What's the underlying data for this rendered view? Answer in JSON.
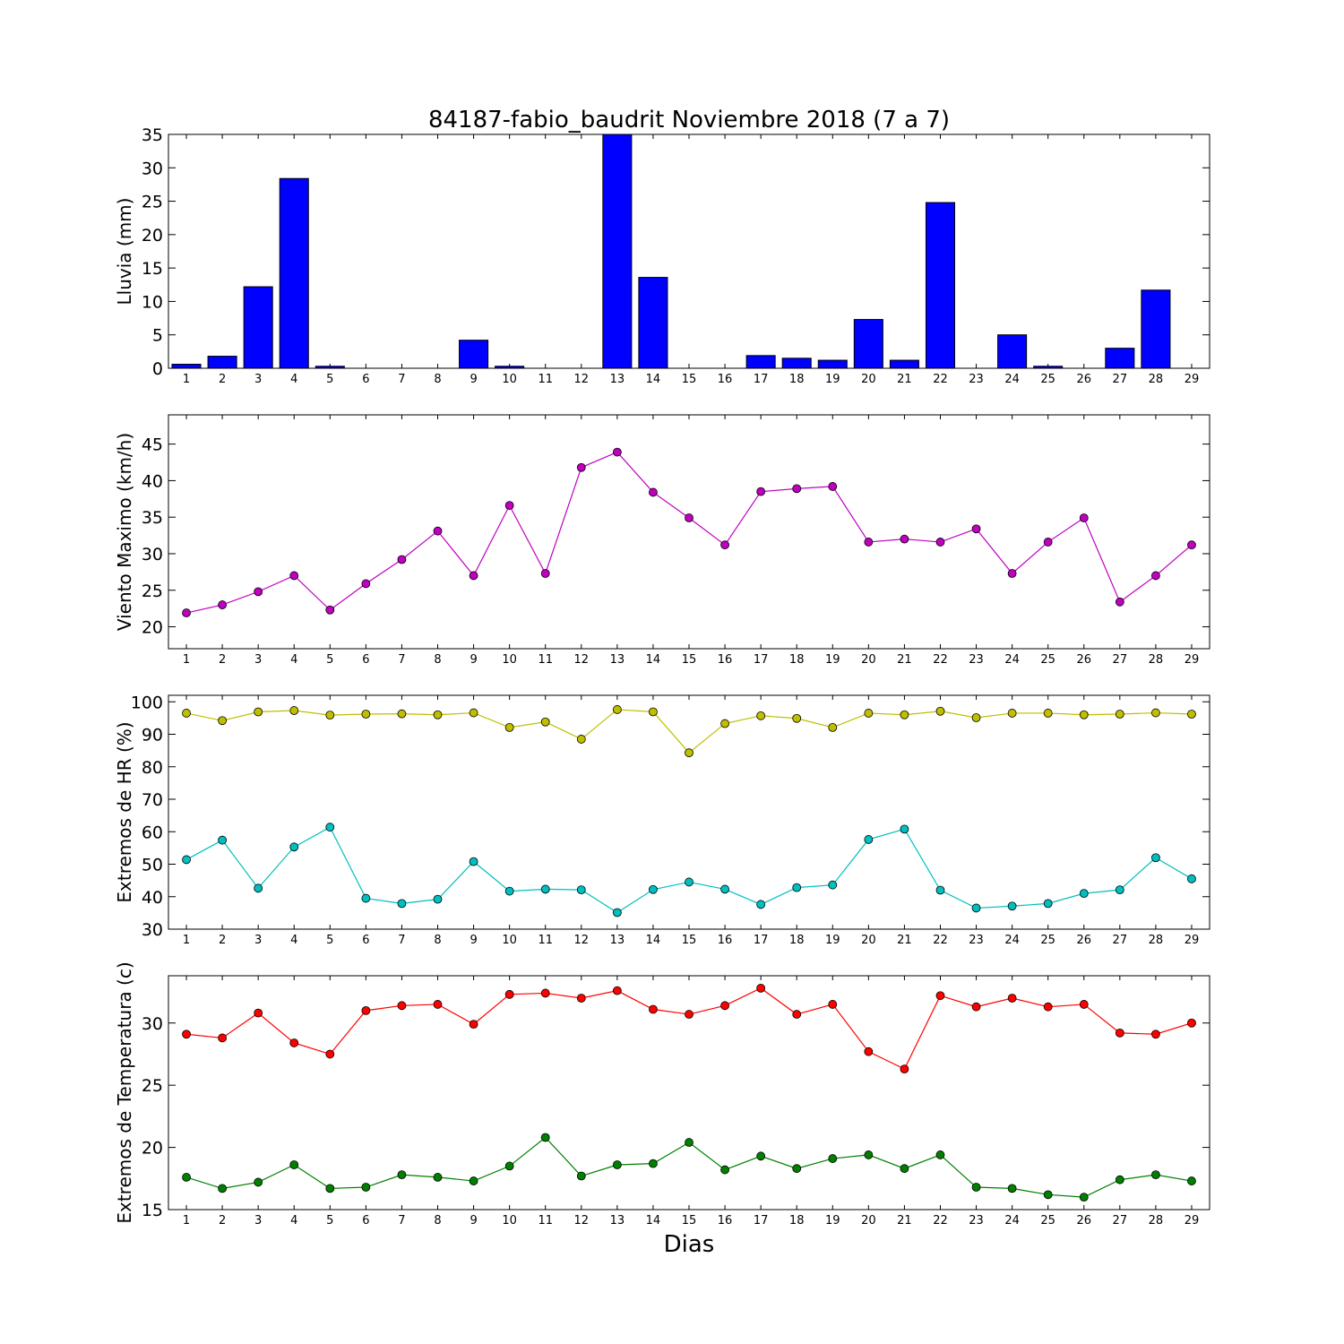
{
  "chart_data": [
    {
      "type": "bar",
      "title": "84187-fabio_baudrit Noviembre 2018  (7 a 7)",
      "ylabel": "Lluvia (mm)",
      "xlabel": "",
      "categories": [
        1,
        2,
        3,
        4,
        5,
        6,
        7,
        8,
        9,
        10,
        11,
        12,
        13,
        14,
        15,
        16,
        17,
        18,
        19,
        20,
        21,
        22,
        23,
        24,
        25,
        26,
        27,
        28,
        29
      ],
      "values": [
        0.6,
        1.8,
        12.2,
        28.4,
        0.3,
        0,
        0,
        0,
        4.2,
        0.3,
        0,
        0,
        35,
        13.6,
        0,
        0,
        1.9,
        1.5,
        1.2,
        7.3,
        1.2,
        24.8,
        0,
        5.0,
        0.3,
        0,
        3.0,
        11.7,
        0
      ],
      "ylim": [
        0,
        35
      ],
      "yticks": [
        0,
        5,
        10,
        15,
        20,
        25,
        30,
        35
      ],
      "color": "#0000ff"
    },
    {
      "type": "line",
      "ylabel": "Viento Maximo (km/h)",
      "x": [
        1,
        2,
        3,
        4,
        5,
        6,
        7,
        8,
        9,
        10,
        11,
        12,
        13,
        14,
        15,
        16,
        17,
        18,
        19,
        20,
        21,
        22,
        23,
        24,
        25,
        26,
        27,
        28,
        29
      ],
      "series": [
        {
          "values": [
            21.9,
            23.0,
            24.8,
            27.0,
            22.3,
            25.9,
            29.2,
            33.1,
            27.0,
            36.6,
            27.3,
            41.8,
            43.9,
            38.4,
            34.9,
            31.2,
            38.5,
            38.9,
            39.2,
            31.6,
            32.0,
            31.6,
            33.4,
            27.3,
            31.6,
            34.9,
            23.4,
            27.0,
            31.2
          ],
          "color": "#bf00bf"
        }
      ],
      "ylim": [
        17,
        49
      ],
      "yticks": [
        20,
        25,
        30,
        35,
        40,
        45
      ]
    },
    {
      "type": "line",
      "ylabel": "Extremos de HR (%)",
      "x": [
        1,
        2,
        3,
        4,
        5,
        6,
        7,
        8,
        9,
        10,
        11,
        12,
        13,
        14,
        15,
        16,
        17,
        18,
        19,
        20,
        21,
        22,
        23,
        24,
        25,
        26,
        27,
        28,
        29
      ],
      "series": [
        {
          "values": [
            96.5,
            94.2,
            96.9,
            97.3,
            95.9,
            96.2,
            96.3,
            96.0,
            96.6,
            92.1,
            93.8,
            88.5,
            97.6,
            96.9,
            84.3,
            93.3,
            95.7,
            94.9,
            92.1,
            96.5,
            96.0,
            97.1,
            95.1,
            96.5,
            96.5,
            96.0,
            96.2,
            96.6,
            96.2
          ],
          "color": "#bfbf00"
        },
        {
          "values": [
            51.4,
            57.4,
            42.6,
            55.3,
            61.4,
            39.5,
            37.9,
            39.2,
            50.8,
            41.7,
            42.3,
            42.1,
            35.1,
            42.2,
            44.5,
            42.3,
            37.6,
            42.8,
            43.6,
            57.6,
            60.8,
            42.0,
            36.5,
            37.1,
            37.9,
            41.0,
            42.1,
            52.0,
            45.5
          ],
          "color": "#00bfbf"
        }
      ],
      "ylim": [
        30,
        102
      ],
      "yticks": [
        30,
        40,
        50,
        60,
        70,
        80,
        90,
        100
      ]
    },
    {
      "type": "line",
      "ylabel": "Extremos de Temperatura (c)",
      "xlabel": "Dias",
      "x": [
        1,
        2,
        3,
        4,
        5,
        6,
        7,
        8,
        9,
        10,
        11,
        12,
        13,
        14,
        15,
        16,
        17,
        18,
        19,
        20,
        21,
        22,
        23,
        24,
        25,
        26,
        27,
        28,
        29
      ],
      "series": [
        {
          "values": [
            29.1,
            28.8,
            30.8,
            28.4,
            27.5,
            31.0,
            31.4,
            31.5,
            29.9,
            32.3,
            32.4,
            32.0,
            32.6,
            31.1,
            30.7,
            31.4,
            32.8,
            30.7,
            31.5,
            27.7,
            26.3,
            32.2,
            31.3,
            32.0,
            31.3,
            31.5,
            29.2,
            29.1,
            30.0
          ],
          "color": "#ff0000"
        },
        {
          "values": [
            17.6,
            16.7,
            17.2,
            18.6,
            16.7,
            16.8,
            17.8,
            17.6,
            17.3,
            18.5,
            20.8,
            17.7,
            18.6,
            18.7,
            20.4,
            18.2,
            19.3,
            18.3,
            19.1,
            19.4,
            18.3,
            19.4,
            16.8,
            16.7,
            16.2,
            16.0,
            17.4,
            17.8,
            17.3
          ],
          "color": "#007f00"
        }
      ],
      "ylim": [
        15,
        33.8
      ],
      "yticks": [
        15,
        20,
        25,
        30
      ]
    }
  ]
}
